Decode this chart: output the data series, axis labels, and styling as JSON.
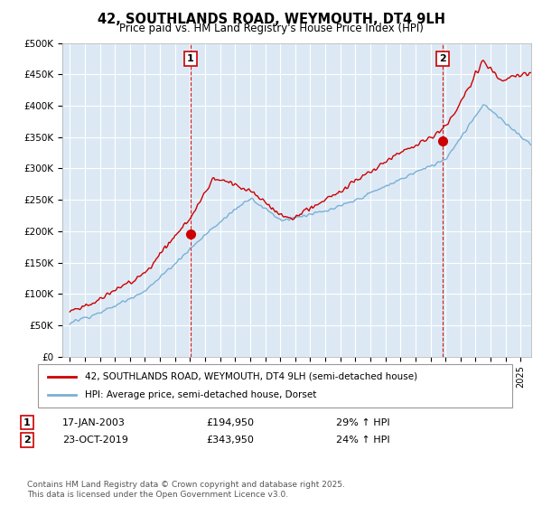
{
  "title": "42, SOUTHLANDS ROAD, WEYMOUTH, DT4 9LH",
  "subtitle": "Price paid vs. HM Land Registry's House Price Index (HPI)",
  "legend_line1": "42, SOUTHLANDS ROAD, WEYMOUTH, DT4 9LH (semi-detached house)",
  "legend_line2": "HPI: Average price, semi-detached house, Dorset",
  "annotation1_label": "1",
  "annotation1_date": "17-JAN-2003",
  "annotation1_price": "£194,950",
  "annotation1_hpi": "29% ↑ HPI",
  "annotation1_year": 2003.04,
  "annotation1_value": 194950,
  "annotation2_label": "2",
  "annotation2_date": "23-OCT-2019",
  "annotation2_price": "£343,950",
  "annotation2_hpi": "24% ↑ HPI",
  "annotation2_year": 2019.81,
  "annotation2_value": 343950,
  "footer": "Contains HM Land Registry data © Crown copyright and database right 2025.\nThis data is licensed under the Open Government Licence v3.0.",
  "red_color": "#cc0000",
  "blue_color": "#7bafd4",
  "plot_bg_color": "#dce9f5",
  "title_color": "#333333",
  "background_color": "#ffffff",
  "grid_color": "#ffffff",
  "ylim": [
    0,
    500000
  ],
  "xlim_start": 1994.5,
  "xlim_end": 2025.7,
  "yticks": [
    0,
    50000,
    100000,
    150000,
    200000,
    250000,
    300000,
    350000,
    400000,
    450000,
    500000
  ],
  "ytick_labels": [
    "£0",
    "£50K",
    "£100K",
    "£150K",
    "£200K",
    "£250K",
    "£300K",
    "£350K",
    "£400K",
    "£450K",
    "£500K"
  ]
}
